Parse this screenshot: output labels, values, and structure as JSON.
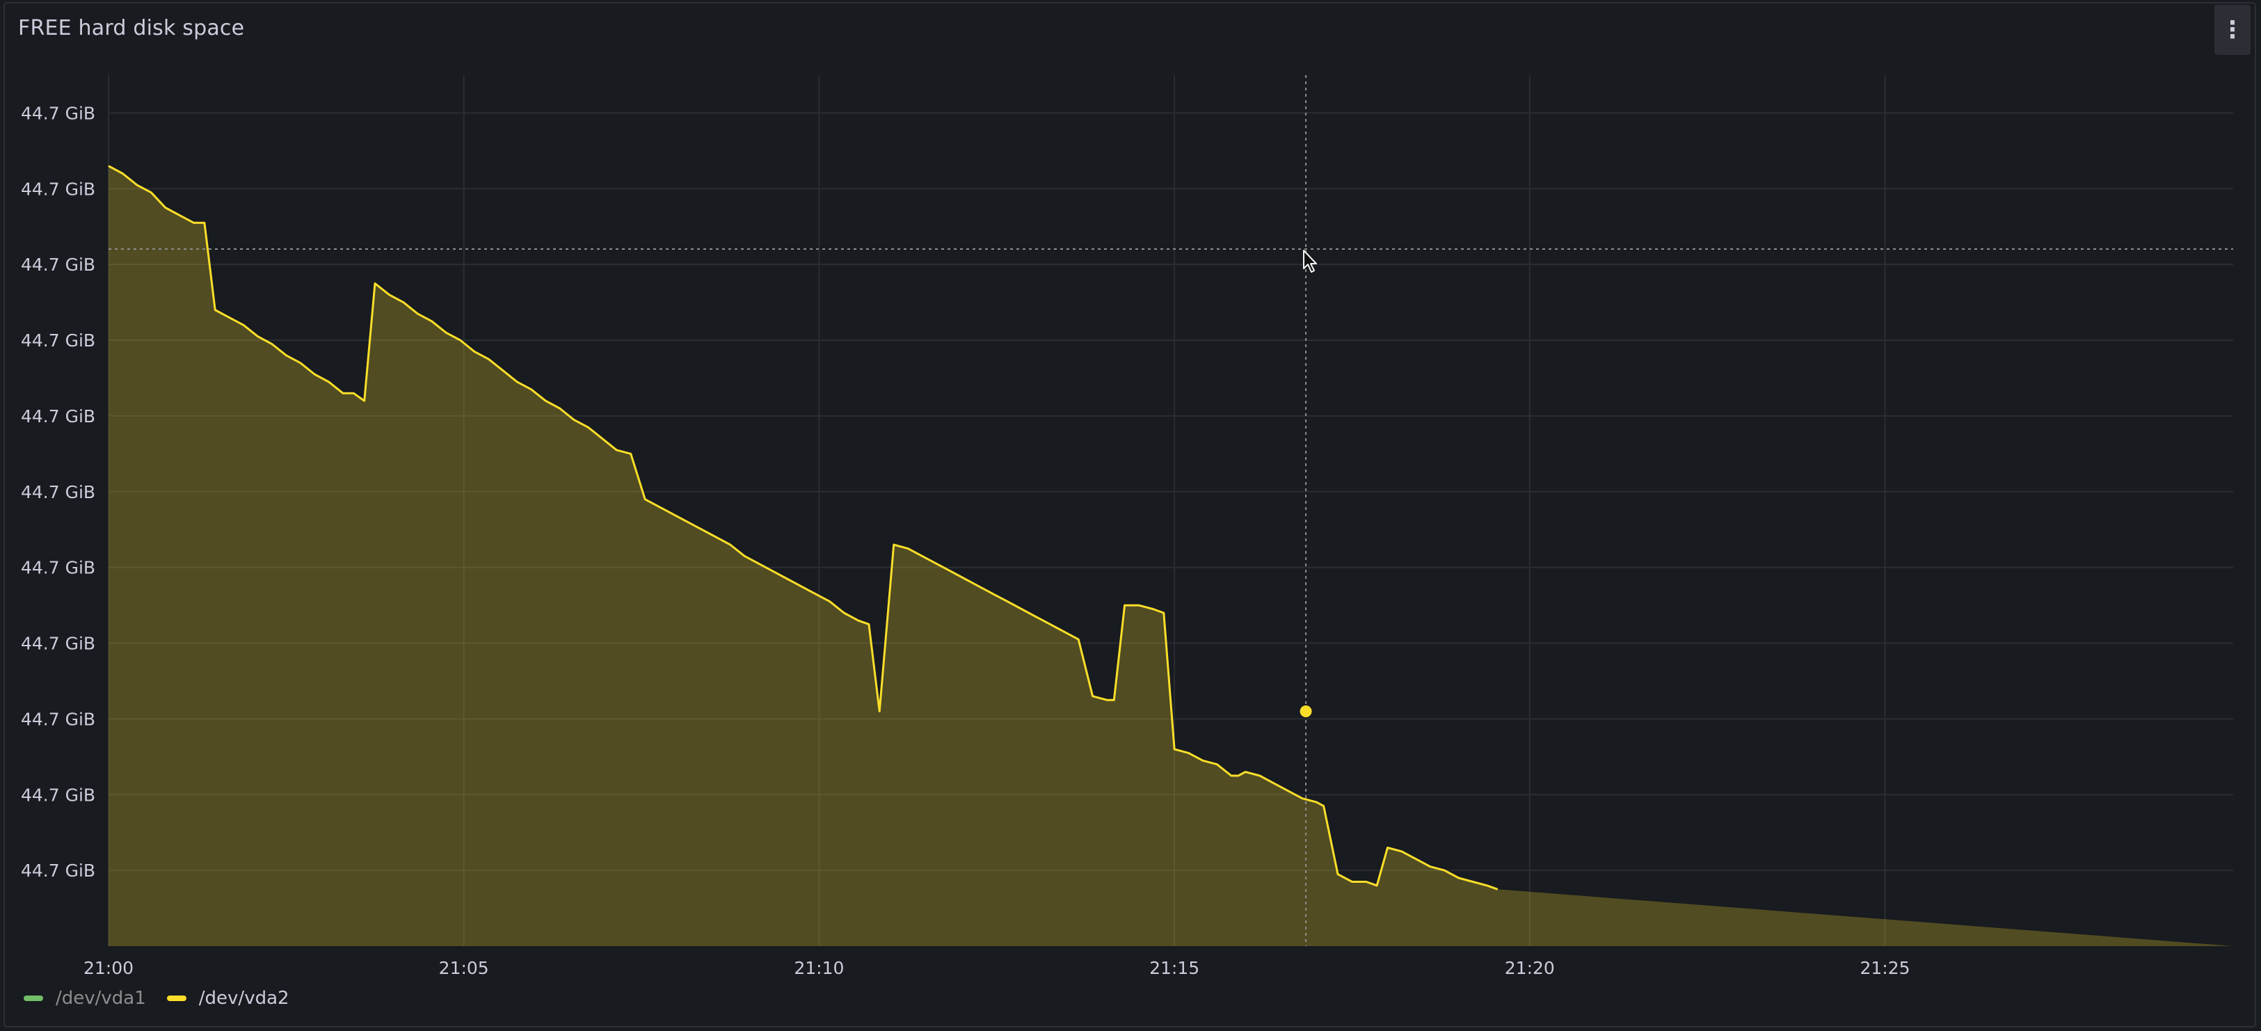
{
  "panel": {
    "title": "FREE hard disk space",
    "menu_icon": "vertical-ellipsis-icon"
  },
  "chart_data": {
    "type": "area",
    "title": "FREE hard disk space",
    "xlabel": "",
    "ylabel": "",
    "x_tick_labels": [
      "21:00",
      "21:05",
      "21:10",
      "21:15",
      "21:20",
      "21:25"
    ],
    "y_tick_labels": [
      "44.7 GiB",
      "44.7 GiB",
      "44.7 GiB",
      "44.7 GiB",
      "44.7 GiB",
      "44.7 GiB",
      "44.7 GiB",
      "44.7 GiB",
      "44.7 GiB",
      "44.7 GiB",
      "44.7 GiB"
    ],
    "ylim": [
      0,
      11.5
    ],
    "grid": true,
    "legend_placement": "bottom-left",
    "series": [
      {
        "name": "/dev/vda1",
        "color": "#73bf69",
        "visible": false,
        "points": []
      },
      {
        "name": "/dev/vda2",
        "color": "#fade2a",
        "visible": true,
        "points": [
          [
            0.0,
            10.3
          ],
          [
            0.2,
            10.2
          ],
          [
            0.4,
            10.05
          ],
          [
            0.6,
            9.95
          ],
          [
            0.8,
            9.75
          ],
          [
            1.0,
            9.65
          ],
          [
            1.2,
            9.55
          ],
          [
            1.35,
            9.55
          ],
          [
            1.5,
            8.4
          ],
          [
            1.7,
            8.3
          ],
          [
            1.9,
            8.2
          ],
          [
            2.1,
            8.05
          ],
          [
            2.3,
            7.95
          ],
          [
            2.5,
            7.8
          ],
          [
            2.7,
            7.7
          ],
          [
            2.9,
            7.55
          ],
          [
            3.1,
            7.45
          ],
          [
            3.3,
            7.3
          ],
          [
            3.45,
            7.3
          ],
          [
            3.6,
            7.2
          ],
          [
            3.75,
            8.75
          ],
          [
            3.95,
            8.6
          ],
          [
            4.15,
            8.5
          ],
          [
            4.35,
            8.35
          ],
          [
            4.55,
            8.25
          ],
          [
            4.75,
            8.1
          ],
          [
            4.95,
            8.0
          ],
          [
            5.15,
            7.85
          ],
          [
            5.35,
            7.75
          ],
          [
            5.55,
            7.6
          ],
          [
            5.75,
            7.45
          ],
          [
            5.95,
            7.35
          ],
          [
            6.15,
            7.2
          ],
          [
            6.35,
            7.1
          ],
          [
            6.55,
            6.95
          ],
          [
            6.75,
            6.85
          ],
          [
            6.95,
            6.7
          ],
          [
            7.15,
            6.55
          ],
          [
            7.35,
            6.5
          ],
          [
            7.55,
            5.9
          ],
          [
            7.75,
            5.8
          ],
          [
            7.95,
            5.7
          ],
          [
            8.15,
            5.6
          ],
          [
            8.35,
            5.5
          ],
          [
            8.55,
            5.4
          ],
          [
            8.75,
            5.3
          ],
          [
            8.95,
            5.15
          ],
          [
            9.15,
            5.05
          ],
          [
            9.35,
            4.95
          ],
          [
            9.55,
            4.85
          ],
          [
            9.75,
            4.75
          ],
          [
            9.95,
            4.65
          ],
          [
            10.15,
            4.55
          ],
          [
            10.35,
            4.4
          ],
          [
            10.55,
            4.3
          ],
          [
            10.7,
            4.25
          ],
          [
            10.85,
            3.1
          ],
          [
            11.05,
            5.3
          ],
          [
            11.25,
            5.25
          ],
          [
            11.45,
            5.15
          ],
          [
            11.65,
            5.05
          ],
          [
            11.85,
            4.95
          ],
          [
            12.05,
            4.85
          ],
          [
            12.25,
            4.75
          ],
          [
            12.45,
            4.65
          ],
          [
            12.65,
            4.55
          ],
          [
            12.85,
            4.45
          ],
          [
            13.05,
            4.35
          ],
          [
            13.25,
            4.25
          ],
          [
            13.45,
            4.15
          ],
          [
            13.65,
            4.05
          ],
          [
            13.85,
            3.3
          ],
          [
            14.05,
            3.25
          ],
          [
            14.15,
            3.25
          ],
          [
            14.3,
            4.5
          ],
          [
            14.5,
            4.5
          ],
          [
            14.7,
            4.45
          ],
          [
            14.85,
            4.4
          ],
          [
            15.0,
            2.6
          ],
          [
            15.2,
            2.55
          ],
          [
            15.4,
            2.45
          ],
          [
            15.6,
            2.4
          ],
          [
            15.8,
            2.25
          ],
          [
            15.9,
            2.25
          ],
          [
            16.0,
            2.3
          ],
          [
            16.2,
            2.25
          ],
          [
            16.4,
            2.15
          ],
          [
            16.6,
            2.05
          ],
          [
            16.8,
            1.95
          ],
          [
            17.0,
            1.9
          ],
          [
            17.1,
            1.85
          ],
          [
            17.3,
            0.95
          ],
          [
            17.5,
            0.85
          ],
          [
            17.7,
            0.85
          ],
          [
            17.85,
            0.8
          ],
          [
            18.0,
            1.3
          ],
          [
            18.2,
            1.25
          ],
          [
            18.4,
            1.15
          ],
          [
            18.6,
            1.05
          ],
          [
            18.8,
            1.0
          ],
          [
            19.0,
            0.9
          ],
          [
            19.2,
            0.85
          ],
          [
            19.4,
            0.8
          ],
          [
            19.55,
            0.75
          ]
        ]
      }
    ],
    "x_range_minutes": [
      0,
      29.9
    ],
    "hover": {
      "x": 16.85,
      "y": 3.1
    }
  },
  "cursor_icon": "mouse-pointer-icon"
}
